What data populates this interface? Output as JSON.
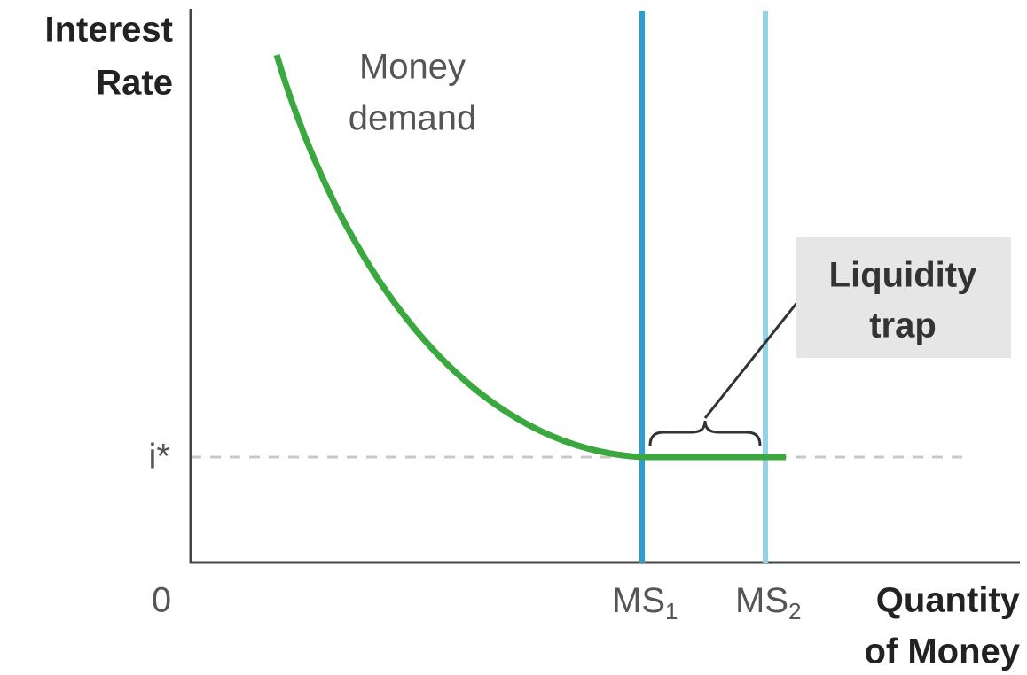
{
  "diagram": {
    "y_axis_label": [
      "Interest",
      "Rate"
    ],
    "x_axis_label": [
      "Quantity",
      "of Money"
    ],
    "origin_label": "0",
    "rate_label": "i*",
    "curve_label": [
      "Money",
      "demand"
    ],
    "supply_labels": [
      {
        "text": "MS",
        "subscript": "1"
      },
      {
        "text": "MS",
        "subscript": "2"
      }
    ],
    "callout": [
      "Liquidity",
      "trap"
    ]
  }
}
